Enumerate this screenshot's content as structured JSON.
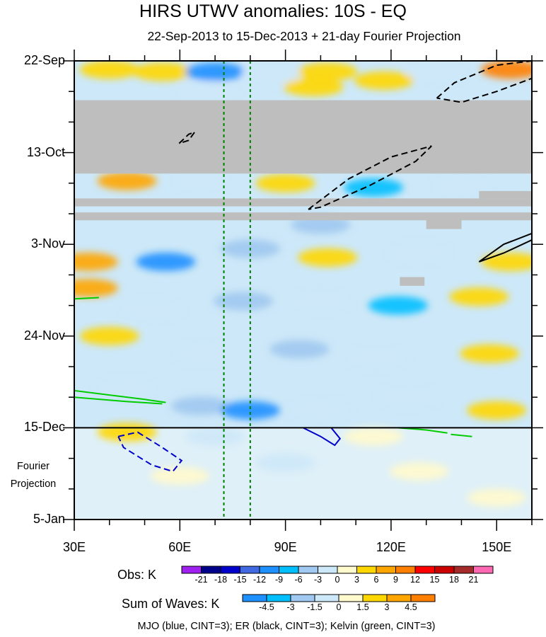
{
  "title": "HIRS UTWV anomalies: 10S - EQ",
  "subtitle": "22-Sep-2013 to 15-Dec-2013 + 21-day Fourier Projection",
  "chart_data": {
    "type": "heatmap",
    "x_axis": {
      "range_degE": [
        30,
        160
      ],
      "ticks": [
        {
          "value": 30,
          "label": "30E"
        },
        {
          "value": 60,
          "label": "60E"
        },
        {
          "value": 90,
          "label": "90E"
        },
        {
          "value": 120,
          "label": "120E"
        },
        {
          "value": 150,
          "label": "150E"
        }
      ]
    },
    "y_axis": {
      "range_days": [
        0,
        105
      ],
      "direction": "down",
      "ticks": [
        {
          "value": 0,
          "label": "22-Sep"
        },
        {
          "value": 21,
          "label": "13-Oct"
        },
        {
          "value": 42,
          "label": "3-Nov"
        },
        {
          "value": 63,
          "label": "24-Nov"
        },
        {
          "value": 84,
          "label": "15-Dec"
        },
        {
          "value": 105,
          "label": "5-Jan"
        }
      ]
    },
    "projection_label": [
      "Fourier",
      "Projection"
    ],
    "projection_start_day": 84,
    "reference_lon_lines_degE": [
      72.5,
      80
    ],
    "missing_bands": [
      {
        "day_from": 9,
        "day_to": 25.8,
        "lon_from": 30,
        "lon_to": 160
      },
      {
        "day_from": 31.5,
        "day_to": 33.3,
        "lon_from": 30,
        "lon_to": 160
      },
      {
        "day_from": 34.7,
        "day_to": 36.5,
        "lon_from": 30,
        "lon_to": 160
      },
      {
        "day_from": 29.8,
        "day_to": 31.5,
        "lon_from": 145,
        "lon_to": 160
      },
      {
        "day_from": 36.3,
        "day_to": 38.5,
        "lon_from": 130,
        "lon_to": 140
      },
      {
        "day_from": 49.5,
        "day_to": 51.5,
        "lon_from": 122.5,
        "lon_to": 129.5
      }
    ],
    "anomaly_patches": [
      {
        "lon": 40,
        "day": 2,
        "value": 4.5
      },
      {
        "lon": 55,
        "day": 2.5,
        "value": 3
      },
      {
        "lon": 70,
        "day": 2.5,
        "value": -12
      },
      {
        "lon": 86,
        "day": 3,
        "value": -3
      },
      {
        "lon": 102,
        "day": 2.5,
        "value": 4.5
      },
      {
        "lon": 118,
        "day": 4.5,
        "value": 3
      },
      {
        "lon": 133,
        "day": 2.5,
        "value": -3
      },
      {
        "lon": 154,
        "day": 2,
        "value": 9
      },
      {
        "lon": 68,
        "day": 7,
        "value": -3
      },
      {
        "lon": 98,
        "day": 6,
        "value": 3
      },
      {
        "lon": 45,
        "day": 27.5,
        "value": 6
      },
      {
        "lon": 66,
        "day": 27.5,
        "value": -3
      },
      {
        "lon": 90,
        "day": 28,
        "value": 3
      },
      {
        "lon": 115,
        "day": 29,
        "value": -9
      },
      {
        "lon": 140,
        "day": 28.5,
        "value": -3
      },
      {
        "lon": 100,
        "day": 37.5,
        "value": -6
      },
      {
        "lon": 34,
        "day": 46,
        "value": 6
      },
      {
        "lon": 56,
        "day": 46,
        "value": -12
      },
      {
        "lon": 80,
        "day": 43,
        "value": -6
      },
      {
        "lon": 102,
        "day": 45,
        "value": 3
      },
      {
        "lon": 128,
        "day": 44,
        "value": -3
      },
      {
        "lon": 154,
        "day": 46,
        "value": 4.5
      },
      {
        "lon": 34,
        "day": 52,
        "value": 6
      },
      {
        "lon": 52,
        "day": 57,
        "value": -3
      },
      {
        "lon": 78,
        "day": 55,
        "value": -6
      },
      {
        "lon": 100,
        "day": 55,
        "value": -3
      },
      {
        "lon": 122,
        "day": 56,
        "value": -9
      },
      {
        "lon": 145,
        "day": 54,
        "value": 3
      },
      {
        "lon": 40,
        "day": 63,
        "value": 3
      },
      {
        "lon": 66,
        "day": 67,
        "value": -3
      },
      {
        "lon": 94,
        "day": 66,
        "value": -6
      },
      {
        "lon": 116,
        "day": 68,
        "value": -3
      },
      {
        "lon": 148,
        "day": 67,
        "value": 3
      },
      {
        "lon": 45,
        "day": 75,
        "value": -3
      },
      {
        "lon": 66,
        "day": 79,
        "value": -6
      },
      {
        "lon": 80,
        "day": 80,
        "value": -12
      },
      {
        "lon": 100,
        "day": 80,
        "value": -3
      },
      {
        "lon": 125,
        "day": 77,
        "value": -3
      },
      {
        "lon": 150,
        "day": 80,
        "value": 3
      },
      {
        "lon": 45,
        "day": 85,
        "value": 3
      },
      {
        "lon": 70,
        "day": 86,
        "value": -3
      },
      {
        "lon": 115,
        "day": 86,
        "value": 1.5
      },
      {
        "lon": 60,
        "day": 95,
        "value": 1.5
      },
      {
        "lon": 90,
        "day": 92,
        "value": -1.5
      },
      {
        "lon": 128,
        "day": 94,
        "value": 1.5
      },
      {
        "lon": 150,
        "day": 100,
        "value": 1.5
      }
    ],
    "wave_contours": [
      {
        "wave": "ER",
        "sign": "negative",
        "color": "#000000",
        "dashed": true,
        "points": [
          [
            133,
            8.5
          ],
          [
            138,
            5
          ],
          [
            150,
            1
          ],
          [
            160,
            0
          ],
          [
            160,
            4
          ],
          [
            150,
            7
          ],
          [
            140,
            9.5
          ],
          [
            133,
            8.5
          ]
        ]
      },
      {
        "wave": "ER",
        "sign": "negative",
        "color": "#000000",
        "dashed": true,
        "points": [
          [
            59.8,
            18.9
          ],
          [
            62.5,
            16.8
          ],
          [
            64.2,
            16.3
          ],
          [
            62.5,
            18.2
          ],
          [
            59.8,
            18.9
          ]
        ]
      },
      {
        "wave": "ER",
        "sign": "negative",
        "color": "#000000",
        "dashed": true,
        "points": [
          [
            96.5,
            34
          ],
          [
            108,
            27
          ],
          [
            120,
            22
          ],
          [
            131.5,
            19.5
          ],
          [
            127,
            23
          ],
          [
            114,
            28.5
          ],
          [
            100,
            33.5
          ],
          [
            96.5,
            34
          ]
        ]
      },
      {
        "wave": "ER",
        "sign": "positive",
        "color": "#000000",
        "dashed": false,
        "points": [
          [
            145,
            46
          ],
          [
            152,
            42
          ],
          [
            160,
            39.5
          ],
          [
            160,
            41
          ],
          [
            152,
            44
          ],
          [
            145,
            46
          ]
        ]
      },
      {
        "wave": "Kelvin",
        "sign": "positive",
        "color": "#00cc00",
        "dashed": false,
        "points": [
          [
            30,
            75.5
          ],
          [
            40,
            76.5
          ],
          [
            50,
            77.5
          ],
          [
            56,
            78.2
          ]
        ]
      },
      {
        "wave": "Kelvin",
        "sign": "positive",
        "color": "#00cc00",
        "dashed": false,
        "points": [
          [
            30,
            77
          ],
          [
            45,
            78
          ],
          [
            55,
            78.5
          ]
        ]
      },
      {
        "wave": "Kelvin",
        "sign": "positive",
        "color": "#00cc00",
        "dashed": false,
        "points": [
          [
            30,
            54.5
          ],
          [
            37,
            54.2
          ]
        ]
      },
      {
        "wave": "Kelvin",
        "sign": "positive",
        "color": "#00cc00",
        "dashed": false,
        "points": [
          [
            122,
            84
          ],
          [
            130,
            84.5
          ],
          [
            136,
            85.2
          ]
        ]
      },
      {
        "wave": "Kelvin",
        "sign": "positive",
        "color": "#00cc00",
        "dashed": false,
        "points": [
          [
            137,
            85.5
          ],
          [
            143,
            86
          ]
        ]
      },
      {
        "wave": "MJO",
        "sign": "positive",
        "color": "#0000cc",
        "dashed": false,
        "points": [
          [
            95,
            84
          ],
          [
            100,
            86
          ],
          [
            104,
            88
          ],
          [
            105.5,
            86.5
          ],
          [
            103,
            84
          ]
        ]
      },
      {
        "wave": "MJO",
        "sign": "negative",
        "color": "#0000cc",
        "dashed": true,
        "points": [
          [
            42.5,
            86
          ],
          [
            48,
            85
          ],
          [
            55,
            88.5
          ],
          [
            60.5,
            91.5
          ],
          [
            58,
            94
          ],
          [
            52,
            92.5
          ],
          [
            44,
            88.5
          ],
          [
            42.5,
            86
          ]
        ]
      }
    ],
    "obs_legend": {
      "title": "Obs: K",
      "levels": [
        "-21",
        "-18",
        "-15",
        "-12",
        "-9",
        "-6",
        "-3",
        "0",
        "3",
        "6",
        "9",
        "12",
        "15",
        "18",
        "21"
      ],
      "colors": [
        "#a020f0",
        "#00008b",
        "#0000cd",
        "#4169e1",
        "#1e90ff",
        "#00bfff",
        "#a0c8f0",
        "#cde8f8",
        "#fffacd",
        "#ffd700",
        "#ffa500",
        "#ff7f00",
        "#ff0000",
        "#cd0000",
        "#a52a2a",
        "#ff69b4"
      ]
    },
    "waves_legend": {
      "title": "Sum of Waves: K",
      "levels": [
        "-4.5",
        "-3",
        "-1.5",
        "0",
        "1.5",
        "3",
        "4.5"
      ],
      "colors": [
        "#1e90ff",
        "#00bfff",
        "#a0c8f0",
        "#cde8f8",
        "#fffacd",
        "#ffd700",
        "#ffa500",
        "#ff7f00"
      ]
    }
  },
  "footnote": "MJO (blue, CINT=3); ER (black, CINT=3); Kelvin (green, CINT=3)"
}
